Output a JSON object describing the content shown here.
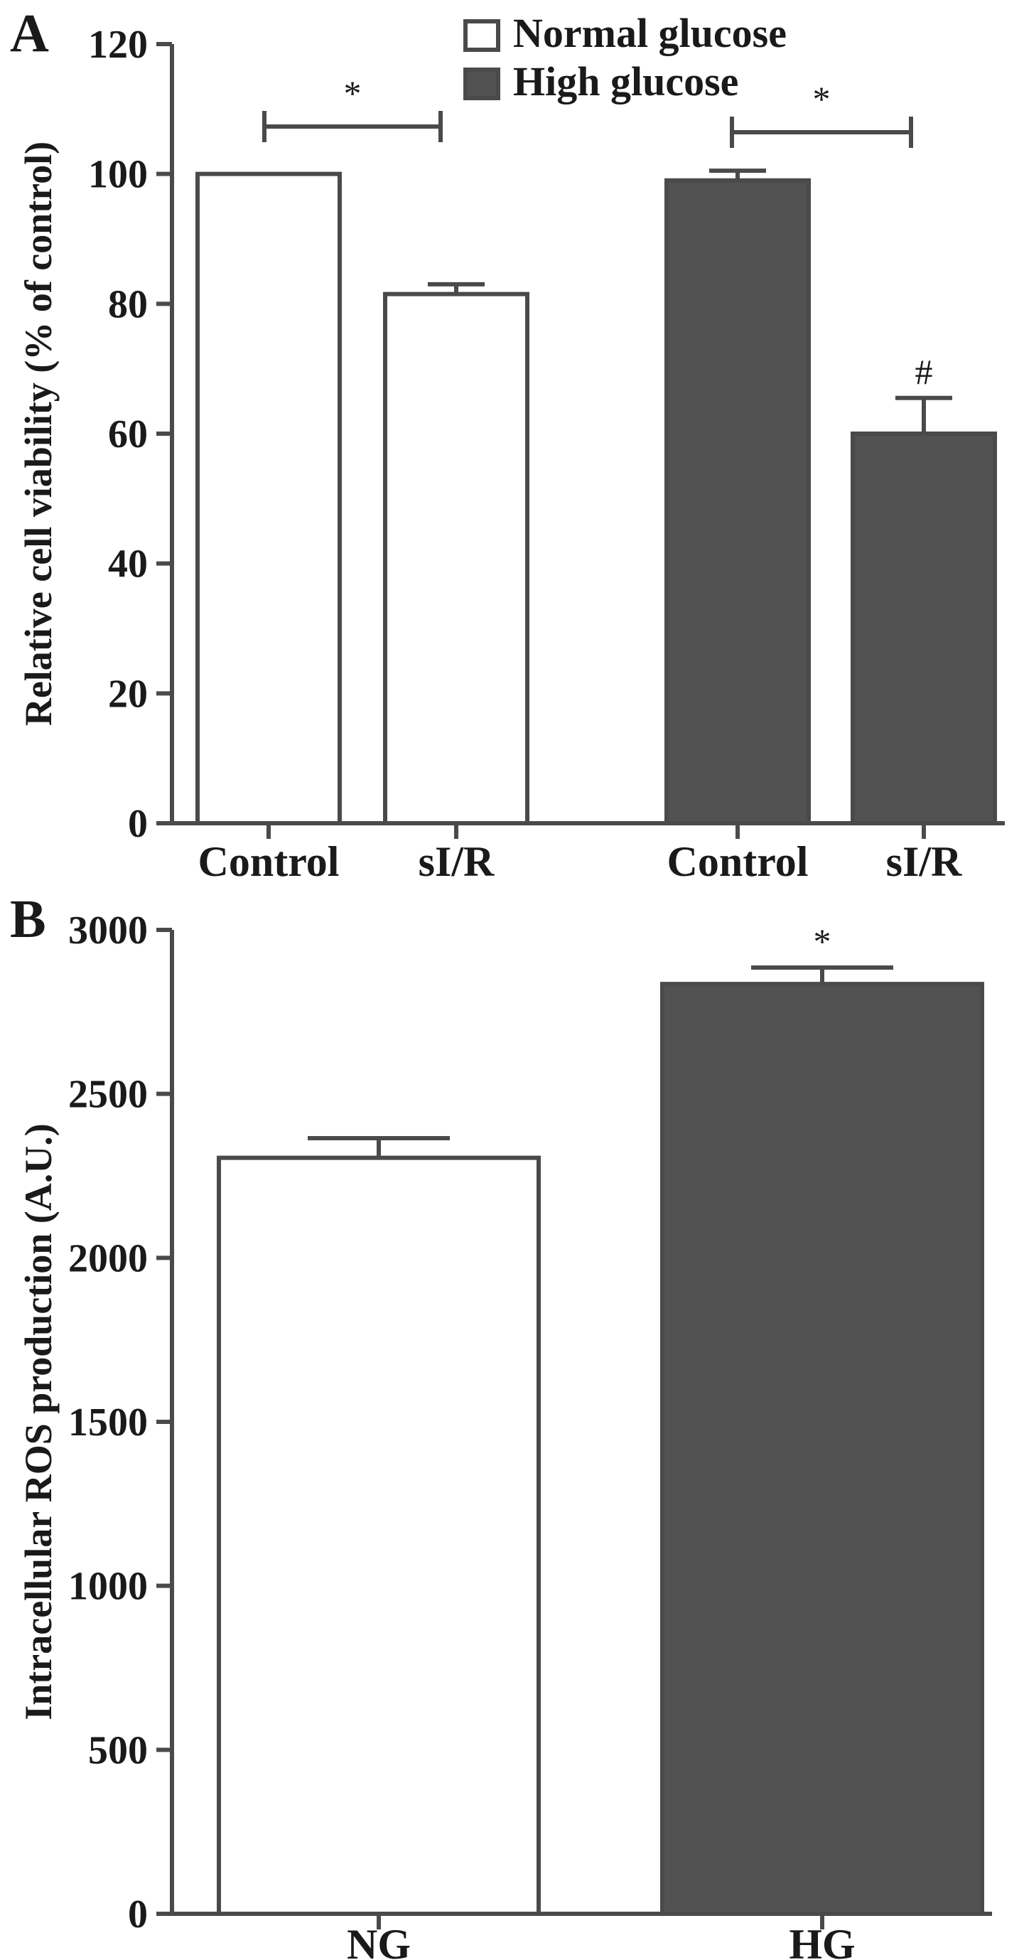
{
  "figure": {
    "panels": [
      "A",
      "B"
    ]
  },
  "chart_data": [
    {
      "type": "bar",
      "panel": "A",
      "ylabel": "Relative cell viability (% of control)",
      "xlabel": "",
      "ylim": [
        0,
        120
      ],
      "yticks": [
        0,
        20,
        40,
        60,
        80,
        100,
        120
      ],
      "legend": {
        "placement": "top-center",
        "entries": [
          "Normal glucose",
          "High glucose"
        ]
      },
      "categories": [
        "Control",
        "sI/R",
        "Control",
        "sI/R"
      ],
      "bars": [
        {
          "label": "Control",
          "series": "Normal glucose",
          "value": 100,
          "error": 0
        },
        {
          "label": "sI/R",
          "series": "Normal glucose",
          "value": 81.5,
          "error": 1.5
        },
        {
          "label": "Control",
          "series": "High glucose",
          "value": 99,
          "error": 1.5
        },
        {
          "label": "sI/R",
          "series": "High glucose",
          "value": 60,
          "error": 5.5,
          "annotation": "#"
        }
      ],
      "significance": [
        {
          "from": 0,
          "to": 1,
          "label": "*"
        },
        {
          "from": 2,
          "to": 3,
          "label": "*"
        }
      ],
      "colors": {
        "normal_fill": "#ffffff",
        "high_fill": "#525252",
        "stroke": "#4a4a4a"
      },
      "grid": false
    },
    {
      "type": "bar",
      "panel": "B",
      "ylabel": "Intracellular ROS production (A.U.)",
      "xlabel": "",
      "ylim": [
        0,
        3000
      ],
      "yticks": [
        0,
        500,
        1000,
        1500,
        2000,
        2500,
        3000
      ],
      "categories": [
        "NG",
        "HG"
      ],
      "bars": [
        {
          "label": "NG",
          "series": "Normal glucose",
          "value": 2305,
          "error": 60
        },
        {
          "label": "HG",
          "series": "High glucose",
          "value": 2835,
          "error": 50,
          "annotation": "*"
        }
      ],
      "colors": {
        "normal_fill": "#ffffff",
        "high_fill": "#525252",
        "stroke": "#4a4a4a"
      },
      "grid": false
    }
  ]
}
